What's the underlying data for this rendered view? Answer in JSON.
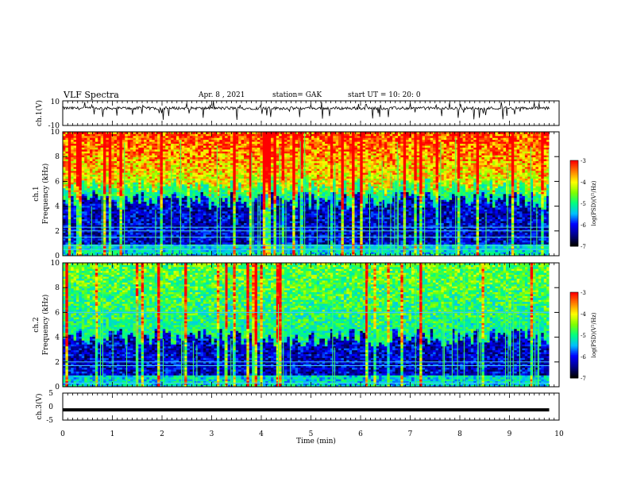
{
  "header": {
    "title": "VLF Spectra",
    "date": "Apr. 8  , 2021",
    "station": "station= GAK",
    "start": "start  UT  =   10: 20: 0"
  },
  "colors": {
    "background": "#ffffff",
    "trace": "#000000",
    "colormap": [
      "#000000",
      "#00008b",
      "#0000ff",
      "#00bfff",
      "#00ff80",
      "#7fff00",
      "#ffff00",
      "#ff8000",
      "#ff0000",
      "#ffffff"
    ]
  },
  "chart_data": [
    {
      "type": "line",
      "name": "ch1-waveform",
      "ylabel": "ch.1(V)",
      "ylim": [
        -10,
        10
      ],
      "y_tick_labels": [
        "10",
        "-10"
      ],
      "xlim": [
        0,
        10
      ],
      "baseline": 4,
      "note_shape": "noisy trace around +4 V with downward spikes"
    },
    {
      "type": "heatmap",
      "name": "ch1-spectrogram",
      "ylabel": "ch.1\nFrequency (kHz)",
      "ylim": [
        0,
        10
      ],
      "y_ticks": [
        0,
        2,
        4,
        6,
        8,
        10
      ],
      "xlim": [
        0,
        10
      ],
      "colorbar": {
        "label": "log(PSD)(V²/Hz)",
        "range": [
          -7,
          -3
        ],
        "ticks": [
          -3,
          -4,
          -5,
          -6,
          -7
        ]
      },
      "hiss_upper_boundary_kHz": 5.5,
      "line_frequencies_kHz": [
        0.5,
        0.8,
        1.5,
        2.0,
        2.3
      ]
    },
    {
      "type": "heatmap",
      "name": "ch2-spectrogram",
      "ylabel": "ch.2\nFrequency (kHz)",
      "ylim": [
        0,
        10
      ],
      "y_ticks": [
        0,
        2,
        4,
        6,
        8,
        10
      ],
      "xlim": [
        0,
        10
      ],
      "colorbar": {
        "label": "log(PSD)(V²/Hz)",
        "range": [
          -7,
          -3
        ],
        "ticks": [
          -3,
          -4,
          -5,
          -6,
          -7
        ]
      },
      "hiss_upper_boundary_kHz": 5.0,
      "line_frequencies_kHz": [
        0.3,
        1.7,
        2.0,
        6.0
      ]
    },
    {
      "type": "line",
      "name": "ch3-waveform",
      "ylabel": "ch.3(V)",
      "ylim": [
        -5,
        5
      ],
      "y_tick_labels": [
        "5",
        "0",
        "-5"
      ],
      "xlim": [
        0,
        10
      ],
      "values_constant": -1.2,
      "xlabel": "Time  (min)",
      "x_tick_labels": [
        "0",
        "1",
        "2",
        "3",
        "4",
        "5",
        "6",
        "7",
        "8",
        "9",
        "10"
      ]
    }
  ]
}
